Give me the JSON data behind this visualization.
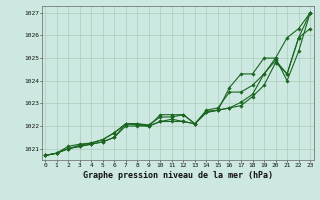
{
  "x": [
    0,
    1,
    2,
    3,
    4,
    5,
    6,
    7,
    8,
    9,
    10,
    11,
    12,
    13,
    14,
    15,
    16,
    17,
    18,
    19,
    20,
    21,
    22,
    23
  ],
  "line1": [
    1020.7,
    1020.8,
    1021.0,
    1021.1,
    1021.2,
    1021.3,
    1021.5,
    1022.1,
    1022.05,
    1022.0,
    1022.5,
    1022.5,
    1022.5,
    1022.1,
    1022.65,
    1022.7,
    1022.8,
    1023.05,
    1023.4,
    1024.3,
    1025.0,
    1025.9,
    1026.3,
    1027.0
  ],
  "line2": [
    1020.7,
    1020.8,
    1021.0,
    1021.15,
    1021.25,
    1021.4,
    1021.7,
    1022.1,
    1022.1,
    1022.05,
    1022.4,
    1022.4,
    1022.5,
    1022.1,
    1022.7,
    1022.8,
    1023.5,
    1023.5,
    1023.8,
    1024.3,
    1024.9,
    1024.3,
    1025.9,
    1026.3
  ],
  "line3": [
    1020.7,
    1020.8,
    1021.1,
    1021.2,
    1021.25,
    1021.4,
    1021.7,
    1022.1,
    1022.1,
    1022.0,
    1022.2,
    1022.2,
    1022.2,
    1022.1,
    1022.6,
    1022.7,
    1022.8,
    1022.9,
    1023.3,
    1023.8,
    1024.8,
    1024.3,
    1025.9,
    1027.0
  ],
  "line4": [
    1020.7,
    1020.8,
    1021.0,
    1021.1,
    1021.2,
    1021.3,
    1021.5,
    1022.0,
    1022.0,
    1022.0,
    1022.2,
    1022.3,
    1022.2,
    1022.1,
    1022.6,
    1022.7,
    1023.7,
    1024.3,
    1024.3,
    1025.0,
    1025.0,
    1024.0,
    1025.3,
    1027.0
  ],
  "bg_color": "#cce8e0",
  "grid_color": "#aaccbb",
  "line_color": "#1a6620",
  "xlabel": "Graphe pression niveau de la mer (hPa)",
  "ylim": [
    1020.5,
    1027.3
  ],
  "yticks": [
    1021,
    1022,
    1023,
    1024,
    1025,
    1026,
    1027
  ],
  "xticks": [
    0,
    1,
    2,
    3,
    4,
    5,
    6,
    7,
    8,
    9,
    10,
    11,
    12,
    13,
    14,
    15,
    16,
    17,
    18,
    19,
    20,
    21,
    22,
    23
  ]
}
